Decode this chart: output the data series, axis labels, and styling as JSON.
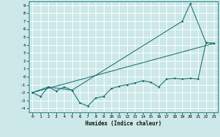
{
  "xlabel": "Humidex (Indice chaleur)",
  "ylabel": "",
  "bg_color": "#cce8e8",
  "grid_color": "#ffffff",
  "line_color": "#1a7070",
  "xlim": [
    -0.5,
    23.5
  ],
  "ylim": [
    -4.5,
    9.5
  ],
  "xticks": [
    0,
    1,
    2,
    3,
    4,
    5,
    6,
    7,
    8,
    9,
    10,
    11,
    12,
    13,
    14,
    15,
    16,
    17,
    18,
    19,
    20,
    21,
    22,
    23
  ],
  "yticks": [
    -4,
    -3,
    -2,
    -1,
    0,
    1,
    2,
    3,
    4,
    5,
    6,
    7,
    8,
    9
  ],
  "series1": [
    [
      0,
      -2
    ],
    [
      1,
      -2.5
    ],
    [
      2,
      -1.3
    ],
    [
      3,
      -1.8
    ],
    [
      4,
      -1.3
    ],
    [
      5,
      -1.7
    ],
    [
      6,
      -3.3
    ],
    [
      7,
      -3.7
    ],
    [
      8,
      -2.7
    ],
    [
      9,
      -2.5
    ],
    [
      10,
      -1.5
    ],
    [
      11,
      -1.2
    ],
    [
      12,
      -1.0
    ],
    [
      13,
      -0.8
    ],
    [
      14,
      -0.5
    ],
    [
      15,
      -0.7
    ],
    [
      16,
      -1.3
    ],
    [
      17,
      -0.3
    ],
    [
      18,
      -0.2
    ],
    [
      19,
      -0.3
    ],
    [
      20,
      -0.2
    ],
    [
      21,
      -0.3
    ],
    [
      22,
      4.3
    ],
    [
      23,
      4.2
    ]
  ],
  "series2": [
    [
      0,
      -2
    ],
    [
      2,
      -1.3
    ],
    [
      5,
      -1.7
    ],
    [
      19,
      7.0
    ],
    [
      20,
      9.2
    ],
    [
      22,
      4.3
    ],
    [
      23,
      4.2
    ]
  ],
  "series3": [
    [
      0,
      -2
    ],
    [
      23,
      4.2
    ]
  ]
}
